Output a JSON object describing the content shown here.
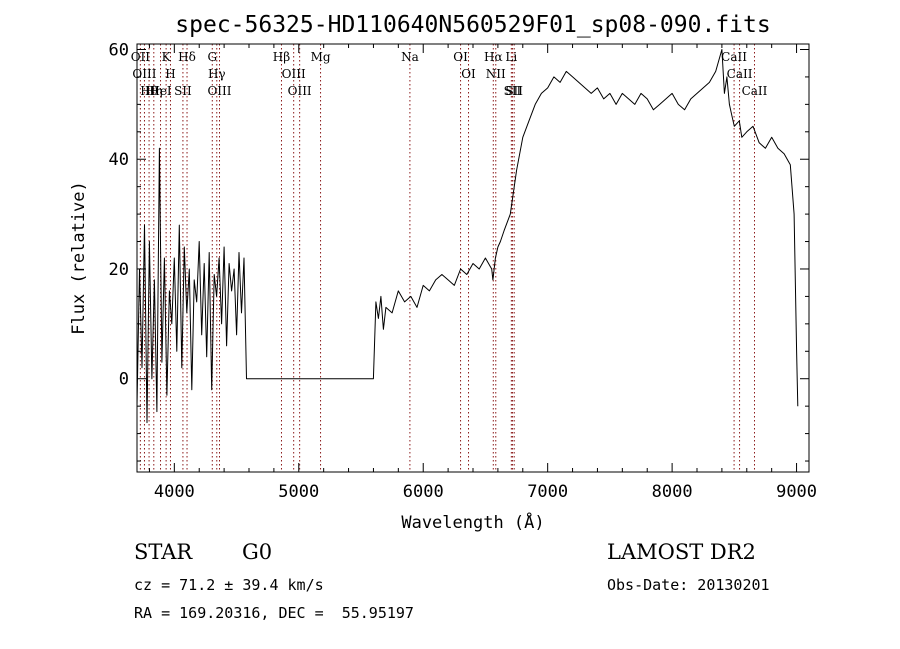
{
  "chart_data": {
    "type": "line",
    "title": "spec-56325-HD110640N560529F01_sp08-090.fits",
    "xlabel": "Wavelength (Å)",
    "ylabel": "Flux (relative)",
    "xlim": [
      3700,
      9100
    ],
    "ylim": [
      -17,
      61
    ],
    "xticks": [
      4000,
      5000,
      6000,
      7000,
      8000,
      9000
    ],
    "yticks": [
      0,
      20,
      40,
      60
    ],
    "grid": false,
    "series": [
      {
        "x": [
          3700,
          3720,
          3740,
          3760,
          3780,
          3800,
          3820,
          3840,
          3860,
          3880,
          3900,
          3920,
          3940,
          3960,
          3980,
          4000,
          4020,
          4040,
          4060,
          4080,
          4100,
          4120,
          4140,
          4160,
          4180,
          4200,
          4220,
          4240,
          4260,
          4280,
          4300,
          4320,
          4340,
          4360,
          4380,
          4400,
          4420,
          4440,
          4460,
          4480,
          4500,
          4520,
          4540,
          4560,
          4580,
          4600,
          5000,
          5400,
          5600,
          5620,
          5640,
          5660,
          5680,
          5700,
          5750,
          5800,
          5850,
          5900,
          5950,
          6000,
          6050,
          6100,
          6150,
          6200,
          6250,
          6300,
          6350,
          6400,
          6450,
          6500,
          6550,
          6560,
          6580,
          6600,
          6620,
          6650,
          6700,
          6750,
          6800,
          6850,
          6900,
          6950,
          7000,
          7050,
          7100,
          7150,
          7200,
          7250,
          7300,
          7350,
          7400,
          7450,
          7500,
          7550,
          7600,
          7650,
          7700,
          7750,
          7800,
          7850,
          7900,
          7950,
          8000,
          8050,
          8100,
          8150,
          8200,
          8250,
          8300,
          8350,
          8400,
          8420,
          8440,
          8460,
          8480,
          8500,
          8540,
          8560,
          8600,
          8650,
          8700,
          8750,
          8800,
          8850,
          8900,
          8950,
          8980,
          9000,
          9010
        ],
        "values": [
          -5,
          20,
          2,
          28,
          -8,
          25,
          0,
          18,
          -6,
          42,
          3,
          22,
          -3,
          16,
          10,
          22,
          5,
          28,
          2,
          24,
          12,
          20,
          -2,
          18,
          14,
          25,
          8,
          21,
          4,
          23,
          -2,
          19,
          15,
          22,
          10,
          24,
          6,
          21,
          16,
          20,
          8,
          23,
          12,
          22,
          0,
          0,
          0,
          0,
          0,
          14,
          11,
          15,
          9,
          13,
          12,
          16,
          14,
          15,
          13,
          17,
          16,
          18,
          19,
          18,
          17,
          20,
          19,
          21,
          20,
          22,
          20,
          18,
          22,
          24,
          25,
          27,
          30,
          38,
          44,
          47,
          50,
          52,
          53,
          55,
          54,
          56,
          55,
          54,
          53,
          52,
          53,
          51,
          52,
          50,
          52,
          51,
          50,
          52,
          51,
          49,
          50,
          51,
          52,
          50,
          49,
          51,
          52,
          53,
          54,
          56,
          60,
          52,
          55,
          50,
          48,
          46,
          47,
          44,
          45,
          46,
          43,
          42,
          44,
          42,
          41,
          39,
          30,
          5,
          -5
        ],
        "color": "#000000"
      }
    ],
    "lines": [
      {
        "label": "Hθ",
        "x": 3797,
        "color": "#8b1a1a"
      },
      {
        "label": "K",
        "x": 3934,
        "color": "#8b1a1a"
      },
      {
        "label": "Hδ",
        "x": 4102,
        "color": "#8b1a1a"
      },
      {
        "label": "OIII",
        "x": 4363,
        "color": "#8b1a1a"
      },
      {
        "label": "OII",
        "x": 3727,
        "color": "#8b1a1a"
      },
      {
        "label": "HeI",
        "x": 3889,
        "color": "#8b1a1a"
      },
      {
        "label": "SII",
        "x": 4069,
        "color": "#8b1a1a"
      },
      {
        "label": "Hγ",
        "x": 4341,
        "color": "#8b1a1a"
      },
      {
        "label": "OIII",
        "x": 3760,
        "color": "#8b1a1a"
      },
      {
        "label": "Hη",
        "x": 3835,
        "color": "#8b1a1a"
      },
      {
        "label": "H",
        "x": 3969,
        "color": "#8b1a1a"
      },
      {
        "label": "G",
        "x": 4305,
        "color": "#8b1a1a"
      },
      {
        "label": "OIII",
        "x": 5007,
        "color": "#8b1a1a"
      },
      {
        "label": "OIII",
        "x": 4959,
        "color": "#8b1a1a"
      },
      {
        "label": "Hβ",
        "x": 4861,
        "color": "#8b1a1a"
      },
      {
        "label": "Mg",
        "x": 5175,
        "color": "#8b1a1a"
      },
      {
        "label": "Na",
        "x": 5893,
        "color": "#8b1a1a"
      },
      {
        "label": "OI",
        "x": 6300,
        "color": "#8b1a1a"
      },
      {
        "label": "OI",
        "x": 6364,
        "color": "#8b1a1a"
      },
      {
        "label": "NII",
        "x": 6583,
        "color": "#8b1a1a"
      },
      {
        "label": "SII",
        "x": 6717,
        "color": "#8b1a1a"
      },
      {
        "label": "Hα",
        "x": 6563,
        "color": "#8b1a1a"
      },
      {
        "label": "SII",
        "x": 6731,
        "color": "#8b1a1a"
      },
      {
        "label": "Li",
        "x": 6708,
        "color": "#8b1a1a"
      },
      {
        "label": "CaII",
        "x": 8662,
        "color": "#8b1a1a"
      },
      {
        "label": "CaII",
        "x": 8542,
        "color": "#8b1a1a"
      },
      {
        "label": "CaII",
        "x": 8498,
        "color": "#8b1a1a"
      }
    ]
  },
  "info": {
    "class": "STAR",
    "subclass": "G0",
    "survey": "LAMOST DR2",
    "cz": "cz = 71.2 ± 39.4 km/s",
    "obs_date": "Obs-Date: 20130201",
    "coords": "RA = 169.20316, DEC =  55.95197"
  }
}
